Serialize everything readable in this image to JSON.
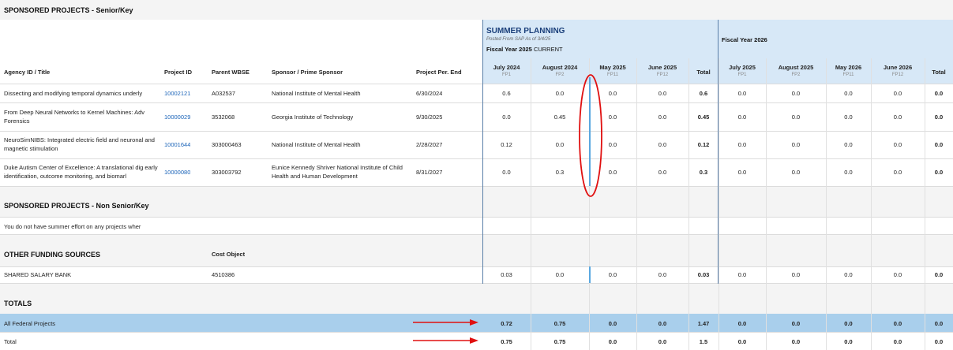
{
  "senior": {
    "title": "SPONSORED PROJECTS - Senior/Key",
    "headers": {
      "agency": "Agency ID / Title",
      "project_id": "Project ID",
      "parent_wbse": "Parent WBSE",
      "sponsor": "Sponsor / Prime Sponsor",
      "per_end": "Project Per. End"
    },
    "rows": [
      {
        "title": "Dissecting and modifying temporal dynamics underly",
        "project_id": "10002121",
        "parent": "A032537",
        "sponsor": "National Institute of Mental Health",
        "end": "6/30/2024",
        "fy25": [
          "0.6",
          "0.0",
          "0.0",
          "0.0",
          "0.6"
        ],
        "fy26": [
          "0.0",
          "0.0",
          "0.0",
          "0.0",
          "0.0"
        ]
      },
      {
        "title": "From Deep Neural Networks to Kernel Machines: Adv Forensics",
        "project_id": "10000029",
        "parent": "3532068",
        "sponsor": "Georgia Institute of Technology",
        "end": "9/30/2025",
        "fy25": [
          "0.0",
          "0.45",
          "0.0",
          "0.0",
          "0.45"
        ],
        "fy26": [
          "0.0",
          "0.0",
          "0.0",
          "0.0",
          "0.0"
        ]
      },
      {
        "title": "NeuroSimNIBS: Integrated electric field and neuronal and magnetic stimulation",
        "project_id": "10001644",
        "parent": "303000463",
        "sponsor": "National Institute of Mental Health",
        "end": "2/28/2027",
        "fy25": [
          "0.12",
          "0.0",
          "0.0",
          "0.0",
          "0.12"
        ],
        "fy26": [
          "0.0",
          "0.0",
          "0.0",
          "0.0",
          "0.0"
        ]
      },
      {
        "title": "Duke Autism Center of Excellence: A translational dig early identification, outcome monitoring, and biomarl",
        "project_id": "10000080",
        "parent": "303003792",
        "sponsor": "Eunice Kennedy Shriver National Institute of Child Health and Human Development",
        "end": "8/31/2027",
        "fy25": [
          "0.0",
          "0.3",
          "0.0",
          "0.0",
          "0.3"
        ],
        "fy26": [
          "0.0",
          "0.0",
          "0.0",
          "0.0",
          "0.0"
        ]
      }
    ]
  },
  "summer": {
    "title": "SUMMER PLANNING",
    "posted": "Posted From SAP As of 3/4/25",
    "fy25_label": "Fiscal Year 2025",
    "fy25_status": "CURRENT",
    "fy26_label": "Fiscal Year 2026",
    "fy25_cols": [
      {
        "month": "July 2024",
        "fp": "FP1"
      },
      {
        "month": "August 2024",
        "fp": "FP2"
      },
      {
        "month": "May 2025",
        "fp": "FP11"
      },
      {
        "month": "June 2025",
        "fp": "FP12"
      },
      {
        "month": "Total",
        "fp": ""
      }
    ],
    "fy26_cols": [
      {
        "month": "July 2025",
        "fp": "FP1"
      },
      {
        "month": "August 2025",
        "fp": "FP2"
      },
      {
        "month": "May 2026",
        "fp": "FP11"
      },
      {
        "month": "June 2026",
        "fp": "FP12"
      },
      {
        "month": "Total",
        "fp": ""
      }
    ]
  },
  "nonsenior": {
    "title": "SPONSORED PROJECTS - Non Senior/Key",
    "message": "You do not have summer effort on any projects wher"
  },
  "other": {
    "title": "OTHER FUNDING SOURCES",
    "cost_object_header": "Cost Object",
    "rows": [
      {
        "title": "SHARED SALARY BANK",
        "cost_object": "4510386",
        "fy25": [
          "0.03",
          "0.0",
          "0.0",
          "0.0",
          "0.03"
        ],
        "fy26": [
          "0.0",
          "0.0",
          "0.0",
          "0.0",
          "0.0"
        ]
      }
    ]
  },
  "totals": {
    "title": "TOTALS",
    "rows": [
      {
        "label": "All Federal Projects",
        "fy25": [
          "0.72",
          "0.75",
          "0.0",
          "0.0",
          "1.47"
        ],
        "fy26": [
          "0.0",
          "0.0",
          "0.0",
          "0.0",
          "0.0"
        ]
      },
      {
        "label": "Total",
        "fy25": [
          "0.75",
          "0.75",
          "0.0",
          "0.0",
          "1.5"
        ],
        "fy26": [
          "0.0",
          "0.0",
          "0.0",
          "0.0",
          "0.0"
        ]
      }
    ]
  },
  "colors": {
    "summer_header_bg": "#d7e8f7",
    "highlight_row": "#a9cfec",
    "link": "#1a63b8",
    "annotation_red": "#e01010"
  }
}
